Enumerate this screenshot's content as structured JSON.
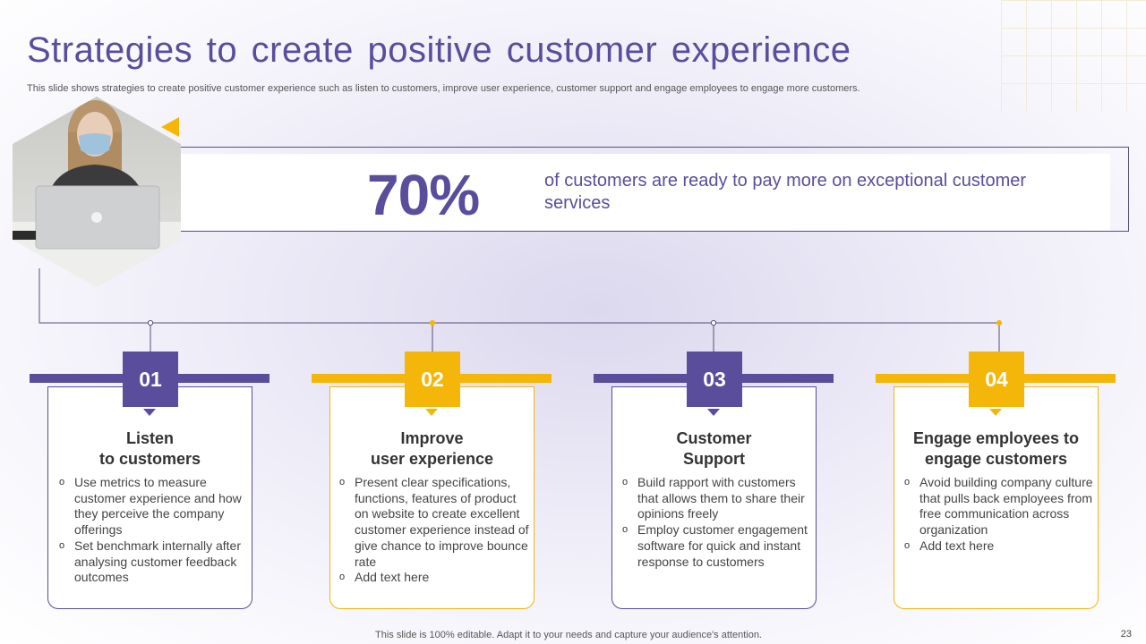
{
  "title": "Strategies to create positive customer experience",
  "subtitle": "This slide shows strategies to create positive customer experience such as listen to customers, improve user experience, customer support and engage employees to engage more customers.",
  "banner": {
    "stat": "70%",
    "text": "of customers are ready to pay more on exceptional customer services"
  },
  "colors": {
    "purple": "#5a4d9c",
    "yellow": "#f5b60a",
    "line": "#54507a"
  },
  "cards": [
    {
      "number": "01",
      "color": "purple",
      "title_line1": "Listen",
      "title_line2": "to customers",
      "items": [
        "Use metrics to measure customer experience and how they perceive the company offerings",
        "Set benchmark internally after analysing customer feedback outcomes"
      ]
    },
    {
      "number": "02",
      "color": "yellow",
      "title_line1": "Improve",
      "title_line2": "user experience",
      "items": [
        "Present clear specifications, functions, features of product on website to create excellent customer experience instead of give chance to improve bounce rate",
        "Add text here"
      ]
    },
    {
      "number": "03",
      "color": "purple",
      "title_line1": "Customer",
      "title_line2": "Support",
      "items": [
        "Build rapport with customers that allows them to share their opinions freely",
        "Employ customer engagement software for quick and instant response to customers"
      ]
    },
    {
      "number": "04",
      "color": "yellow",
      "title_line1": "Engage employees to",
      "title_line2": "engage customers",
      "items": [
        "Avoid building company culture that pulls back employees from free communication across organization",
        "Add text here"
      ]
    }
  ],
  "footer": "This slide is 100% editable. Adapt it to your needs and capture your audience's attention.",
  "page_number": "23"
}
